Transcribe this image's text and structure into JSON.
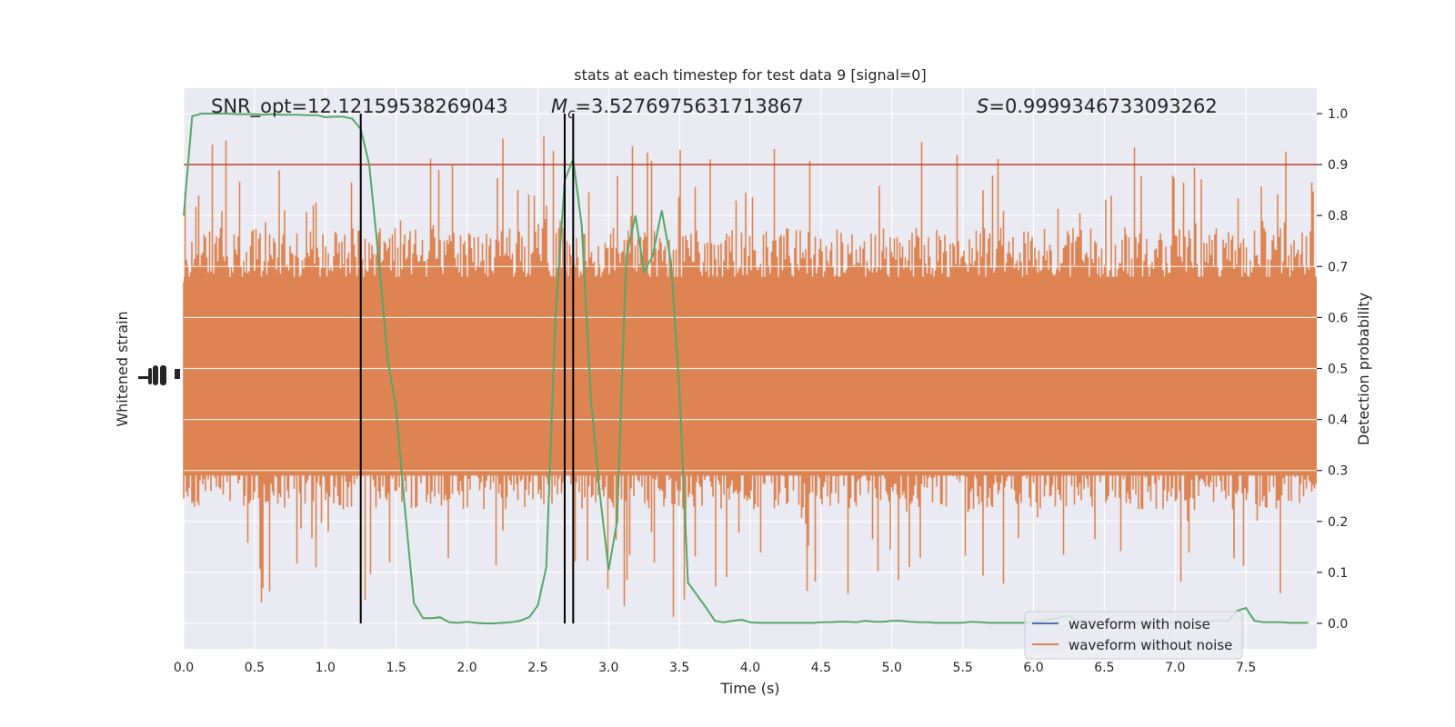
{
  "chart_data": {
    "type": "line",
    "title": "stats at each timestep for test data 9 [signal=0]",
    "xlabel": "Time (s)",
    "ylabel_left": "Whitened strain",
    "ylabel_right": "Detection probability",
    "xlim": [
      0,
      8
    ],
    "ylim_right": [
      -0.05,
      1.05
    ],
    "x_ticks": [
      0.0,
      0.5,
      1.0,
      1.5,
      2.0,
      2.5,
      3.0,
      3.5,
      4.0,
      4.5,
      5.0,
      5.5,
      6.0,
      6.5,
      7.0,
      7.5
    ],
    "x_tick_labels": [
      "0.0",
      "0.5",
      "1.0",
      "1.5",
      "2.0",
      "2.5",
      "3.0",
      "3.5",
      "4.0",
      "4.5",
      "5.0",
      "5.5",
      "6.0",
      "6.5",
      "7.0",
      "7.5"
    ],
    "y_ticks_right": [
      0.0,
      0.1,
      0.2,
      0.3,
      0.4,
      0.5,
      0.6,
      0.7,
      0.8,
      0.9,
      1.0
    ],
    "y_tick_labels_right": [
      "0.0",
      "0.1",
      "0.2",
      "0.3",
      "0.4",
      "0.5",
      "0.6",
      "0.7",
      "0.8",
      "0.9",
      "1.0"
    ],
    "grid": true,
    "threshold": {
      "value": 0.9,
      "color": "#c0392b"
    },
    "vertical_markers": [
      1.25,
      2.69,
      2.75
    ],
    "annotations": {
      "snr": "SNR_opt=12.12159538269043",
      "mc": "M",
      "mc_sub": "c",
      "mc_value": "=3.5276975631713867",
      "s_symbol": "S",
      "s_value": "=0.9999346733093262"
    },
    "legend": {
      "placement": "lower right",
      "entries": [
        {
          "name": "waveform with noise",
          "color": "#4c72b0"
        },
        {
          "name": "waveform without noise",
          "color": "#dd8452"
        }
      ]
    },
    "series": [
      {
        "name": "Detection probability",
        "color": "#55a868",
        "x": [
          0.0,
          0.06,
          0.125,
          0.19,
          0.25,
          0.31,
          0.375,
          0.44,
          0.5,
          0.56,
          0.625,
          0.69,
          0.75,
          0.81,
          0.875,
          0.94,
          1.0,
          1.06,
          1.125,
          1.19,
          1.25,
          1.31,
          1.375,
          1.44,
          1.5,
          1.56,
          1.625,
          1.69,
          1.75,
          1.81,
          1.875,
          1.94,
          2.0,
          2.06,
          2.125,
          2.19,
          2.25,
          2.31,
          2.375,
          2.44,
          2.5,
          2.56,
          2.625,
          2.69,
          2.75,
          2.81,
          2.875,
          2.94,
          3.0,
          3.06,
          3.125,
          3.19,
          3.25,
          3.31,
          3.375,
          3.44,
          3.5,
          3.56,
          3.625,
          3.69,
          3.75,
          3.81,
          3.875,
          3.94,
          4.0,
          4.06,
          4.125,
          4.19,
          4.25,
          4.31,
          4.375,
          4.44,
          4.5,
          4.56,
          4.625,
          4.69,
          4.75,
          4.81,
          4.875,
          4.94,
          5.0,
          5.06,
          5.125,
          5.19,
          5.25,
          5.31,
          5.375,
          5.44,
          5.5,
          5.56,
          5.625,
          5.69,
          5.75,
          5.81,
          5.875,
          5.94,
          6.0,
          6.06,
          6.125,
          6.19,
          6.25,
          6.31,
          6.375,
          6.44,
          6.5,
          6.56,
          6.625,
          6.69,
          6.75,
          6.81,
          6.875,
          6.94,
          7.0,
          7.06,
          7.125,
          7.19,
          7.25,
          7.31,
          7.375,
          7.44,
          7.5,
          7.56,
          7.625,
          7.69,
          7.75,
          7.81,
          7.875,
          7.94
        ],
        "y": [
          0.8,
          0.995,
          1.0,
          1.0,
          1.0,
          1.0,
          0.999,
          0.999,
          0.999,
          0.998,
          0.999,
          0.998,
          0.998,
          0.998,
          0.997,
          0.997,
          0.993,
          0.994,
          0.994,
          0.99,
          0.97,
          0.9,
          0.72,
          0.52,
          0.42,
          0.23,
          0.04,
          0.01,
          0.01,
          0.012,
          0.002,
          0.001,
          0.003,
          0.001,
          0.0,
          0.0,
          0.001,
          0.002,
          0.005,
          0.012,
          0.035,
          0.11,
          0.6,
          0.87,
          0.91,
          0.78,
          0.44,
          0.25,
          0.105,
          0.2,
          0.72,
          0.8,
          0.69,
          0.72,
          0.81,
          0.71,
          0.46,
          0.08,
          0.055,
          0.03,
          0.005,
          0.002,
          0.005,
          0.007,
          0.002,
          0.001,
          0.001,
          0.001,
          0.001,
          0.001,
          0.001,
          0.001,
          0.002,
          0.002,
          0.003,
          0.003,
          0.002,
          0.005,
          0.003,
          0.003,
          0.005,
          0.005,
          0.003,
          0.002,
          0.002,
          0.001,
          0.001,
          0.001,
          0.001,
          0.003,
          0.002,
          0.001,
          0.001,
          0.001,
          0.001,
          0.001,
          0.002,
          0.005,
          0.008,
          0.012,
          0.015,
          0.005,
          0.003,
          0.002,
          0.003,
          0.002,
          0.002,
          0.001,
          0.001,
          0.001,
          0.002,
          0.002,
          0.002,
          0.002,
          0.003,
          0.004,
          0.004,
          0.006,
          0.005,
          0.025,
          0.03,
          0.005,
          0.002,
          0.002,
          0.002,
          0.001,
          0.001,
          0.001
        ]
      }
    ]
  }
}
